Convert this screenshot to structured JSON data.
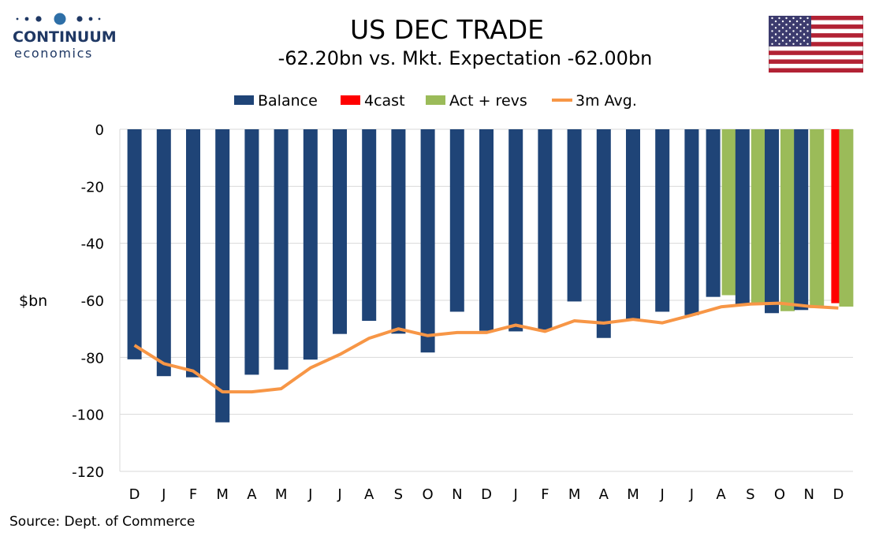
{
  "brand": {
    "name": "CONTINUUM",
    "tagline": "economics"
  },
  "header": {
    "title": "US DEC TRADE",
    "subtitle": "-62.20bn vs. Mkt. Expectation -62.00bn"
  },
  "footer": {
    "source": "Source: Dept. of Commerce"
  },
  "flag_icon": "us-flag-icon",
  "colors": {
    "balance": "#1f4477",
    "forecast": "#ff0000",
    "act_revs": "#9bbb59",
    "avg": "#f79646",
    "gridline": "#d9d9d9",
    "brand": "#1f3864"
  },
  "chart_data": {
    "type": "bar",
    "title": "US DEC TRADE",
    "subtitle": "-62.20bn vs. Mkt. Expectation -62.00bn",
    "xlabel": "",
    "ylabel": "$bn",
    "ylim": [
      -120,
      0
    ],
    "yticks": [
      0,
      -20,
      -40,
      -60,
      -80,
      -100,
      -120
    ],
    "grid": true,
    "legend_position": "top",
    "categories": [
      "D",
      "J",
      "F",
      "M",
      "A",
      "M",
      "J",
      "J",
      "A",
      "S",
      "O",
      "N",
      "D",
      "J",
      "F",
      "M",
      "A",
      "M",
      "J",
      "J",
      "A",
      "S",
      "O",
      "N",
      "D"
    ],
    "series": [
      {
        "name": "Balance",
        "kind": "bar",
        "values": [
          -80.7,
          -86.6,
          -87.0,
          -102.8,
          -86.1,
          -84.3,
          -80.8,
          -71.8,
          -67.2,
          -71.7,
          -78.3,
          -64.0,
          -70.7,
          -70.9,
          -70.3,
          -60.4,
          -73.2,
          -66.5,
          -64.0,
          -65.2,
          -58.8,
          -61.4,
          -64.5,
          -63.4,
          null
        ]
      },
      {
        "name": "4cast",
        "kind": "bar",
        "values": [
          null,
          null,
          null,
          null,
          null,
          null,
          null,
          null,
          null,
          null,
          null,
          null,
          null,
          null,
          null,
          null,
          null,
          null,
          null,
          null,
          null,
          null,
          null,
          null,
          -61.0
        ]
      },
      {
        "name": "Act + revs",
        "kind": "bar",
        "values": [
          null,
          null,
          null,
          null,
          null,
          null,
          null,
          null,
          null,
          null,
          null,
          null,
          null,
          null,
          null,
          null,
          null,
          null,
          null,
          null,
          -58.2,
          -61.0,
          -63.8,
          -62.7,
          -62.2
        ]
      },
      {
        "name": "3m Avg.",
        "kind": "line",
        "values": [
          -75.8,
          -82.2,
          -84.8,
          -92.1,
          -92.1,
          -91.0,
          -83.7,
          -79.0,
          -73.3,
          -70.0,
          -72.4,
          -71.3,
          -71.3,
          -68.7,
          -70.9,
          -67.2,
          -68.0,
          -66.7,
          -67.9,
          -65.2,
          -62.3,
          -61.3,
          -61.0,
          -62.1,
          -62.7
        ]
      }
    ]
  }
}
